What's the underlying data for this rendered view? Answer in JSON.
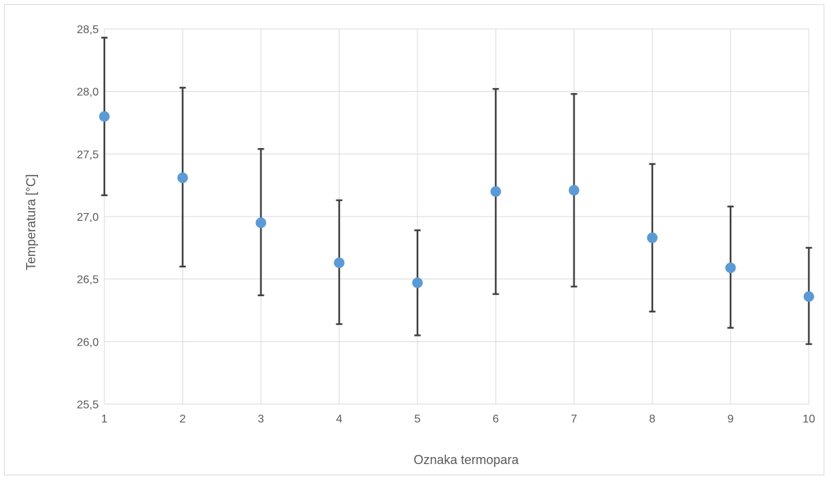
{
  "chart_data": {
    "type": "scatter",
    "title": "",
    "xlabel": "Oznaka termopara",
    "ylabel": "Temperatura [°C]",
    "xlim": [
      1,
      10
    ],
    "ylim": [
      25.5,
      28.5
    ],
    "grid": true,
    "x_ticks": [
      "1",
      "2",
      "3",
      "4",
      "5",
      "6",
      "7",
      "8",
      "9",
      "10"
    ],
    "y_ticks": [
      "25,5",
      "26,0",
      "26,5",
      "27,0",
      "27,5",
      "28,0",
      "28,5"
    ],
    "y_tick_values": [
      25.5,
      26.0,
      26.5,
      27.0,
      27.5,
      28.0,
      28.5
    ],
    "series": [
      {
        "x": [
          1,
          2,
          3,
          4,
          5,
          6,
          7,
          8,
          9,
          10
        ],
        "y": [
          27.8,
          27.31,
          26.95,
          26.63,
          26.47,
          27.2,
          27.21,
          26.83,
          26.59,
          26.36
        ],
        "error_low": [
          27.17,
          26.6,
          26.37,
          26.14,
          26.05,
          26.38,
          26.44,
          26.24,
          26.11,
          25.98
        ],
        "error_high": [
          28.43,
          28.03,
          27.54,
          27.13,
          26.89,
          28.02,
          27.98,
          27.42,
          27.08,
          26.75
        ]
      }
    ],
    "colors": {
      "point": "#5b9bd5",
      "error_bar": "#404040",
      "grid": "#d9d9d9",
      "text": "#595959"
    }
  }
}
